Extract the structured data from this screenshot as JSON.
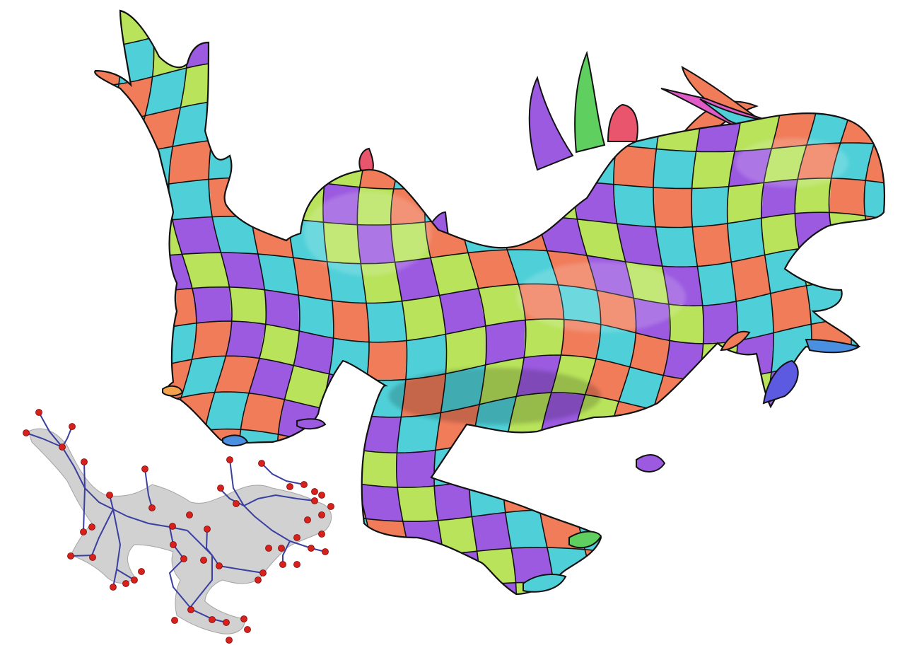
{
  "scene": {
    "background": "#ffffff",
    "main_model": {
      "subject": "dragon",
      "render_style": "quad-patch layout",
      "seam_color": "#111111",
      "patch_colors": [
        "#e8556d",
        "#f07c5a",
        "#f5a24c",
        "#ece35a",
        "#b8e35b",
        "#5fd05f",
        "#3ec49a",
        "#4fd0d8",
        "#4a8fe0",
        "#5b5ae0",
        "#9b5ae0",
        "#e05ac8"
      ]
    },
    "inset_model": {
      "subject": "dragon skeleton",
      "render_style": "translucent gray mesh with curve skeleton",
      "mesh_color": "#9a9a9a",
      "skeleton_color": "#3b3fa0",
      "joint_color": "#d8201c"
    }
  }
}
